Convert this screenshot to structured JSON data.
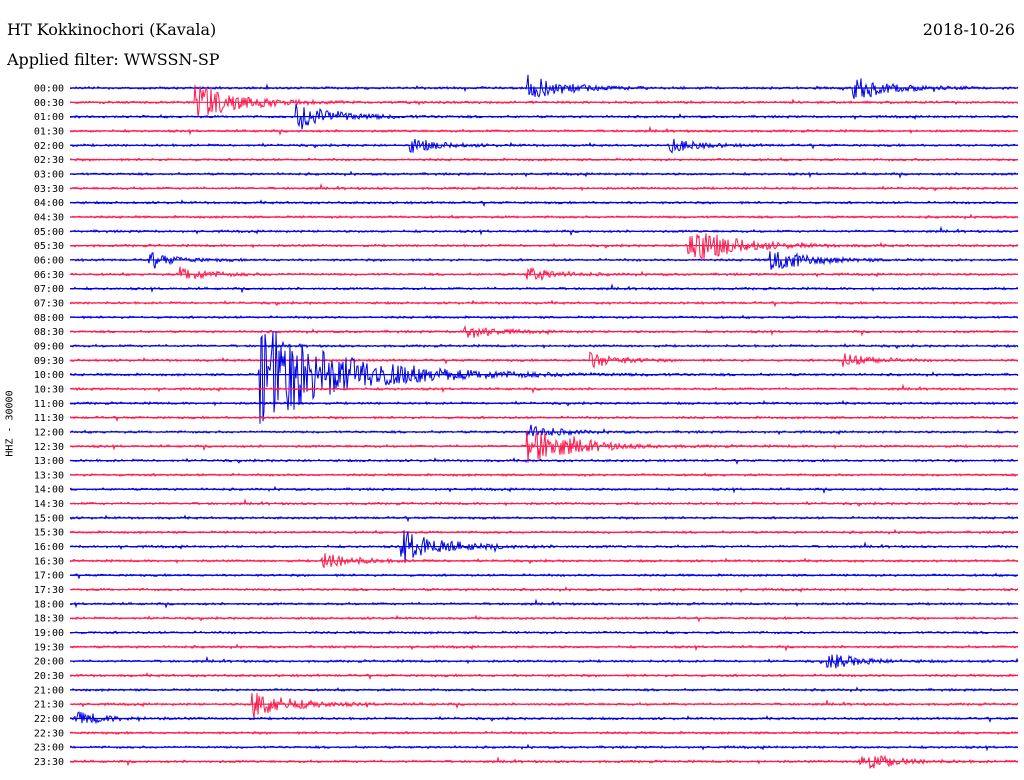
{
  "header": {
    "station": "HT Kokkinochori (Kavala)",
    "date": "2018-10-26",
    "filter": "Applied filter: WWSSN-SP",
    "channel": "HHZ - 30000"
  },
  "colors": {
    "trace_a": "#0000e6",
    "trace_b": "#ff1a4d",
    "text": "#000000"
  },
  "chart_data": {
    "type": "line",
    "title": "HT Kokkinochori (Kavala)",
    "subtitle": "Applied filter: WWSSN-SP",
    "ylabel": "HHZ - 30000",
    "xlabel": "",
    "row_labels": [
      "00:00",
      "00:30",
      "01:00",
      "01:30",
      "02:00",
      "02:30",
      "03:00",
      "03:30",
      "04:00",
      "04:30",
      "05:00",
      "05:30",
      "06:00",
      "06:30",
      "07:00",
      "07:30",
      "08:00",
      "08:30",
      "09:00",
      "09:30",
      "10:00",
      "10:30",
      "11:00",
      "11:30",
      "12:00",
      "12:30",
      "13:00",
      "13:30",
      "14:00",
      "14:30",
      "15:00",
      "15:30",
      "16:00",
      "16:30",
      "17:00",
      "17:30",
      "18:00",
      "18:30",
      "19:00",
      "19:30",
      "20:00",
      "20:30",
      "21:00",
      "21:30",
      "22:00",
      "22:30",
      "23:00",
      "23:30"
    ],
    "row_minutes": 30,
    "colors_alternate": [
      "#0000e6",
      "#ff1a4d"
    ],
    "events": [
      {
        "row": "00:00",
        "minute": 14.5,
        "amplitude": 0.9
      },
      {
        "row": "00:00",
        "minute": 24.8,
        "amplitude": 0.9
      },
      {
        "row": "00:30",
        "minute": 4.0,
        "amplitude": 1.3
      },
      {
        "row": "01:00",
        "minute": 7.2,
        "amplitude": 1.0
      },
      {
        "row": "02:00",
        "minute": 10.8,
        "amplitude": 0.5
      },
      {
        "row": "02:00",
        "minute": 19.0,
        "amplitude": 0.5
      },
      {
        "row": "05:30",
        "minute": 19.6,
        "amplitude": 1.4
      },
      {
        "row": "06:00",
        "minute": 22.2,
        "amplitude": 0.9
      },
      {
        "row": "06:00",
        "minute": 2.5,
        "amplitude": 0.5
      },
      {
        "row": "06:30",
        "minute": 3.5,
        "amplitude": 0.5
      },
      {
        "row": "06:30",
        "minute": 14.5,
        "amplitude": 0.5
      },
      {
        "row": "08:30",
        "minute": 12.5,
        "amplitude": 0.5
      },
      {
        "row": "09:30",
        "minute": 16.5,
        "amplitude": 0.5
      },
      {
        "row": "09:30",
        "minute": 24.5,
        "amplitude": 0.5
      },
      {
        "row": "10:00",
        "minute": 6.0,
        "amplitude": 3.8
      },
      {
        "row": "12:30",
        "minute": 14.5,
        "amplitude": 1.4
      },
      {
        "row": "12:00",
        "minute": 14.5,
        "amplitude": 0.5
      },
      {
        "row": "16:00",
        "minute": 10.5,
        "amplitude": 1.2
      },
      {
        "row": "16:30",
        "minute": 8.0,
        "amplitude": 0.6
      },
      {
        "row": "20:00",
        "minute": 24.0,
        "amplitude": 0.6
      },
      {
        "row": "21:30",
        "minute": 5.8,
        "amplitude": 1.0
      },
      {
        "row": "22:00",
        "minute": 0.2,
        "amplitude": 0.5
      },
      {
        "row": "23:30",
        "minute": 25.0,
        "amplitude": 0.7
      }
    ]
  }
}
